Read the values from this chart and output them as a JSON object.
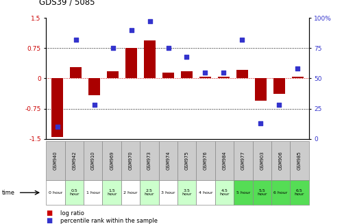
{
  "title": "GDS39 / 5085",
  "gsm_labels": [
    "GSM940",
    "GSM942",
    "GSM910",
    "GSM969",
    "GSM970",
    "GSM973",
    "GSM974",
    "GSM975",
    "GSM976",
    "GSM984",
    "GSM977",
    "GSM903",
    "GSM906",
    "GSM985"
  ],
  "time_labels": [
    "0 hour",
    "0.5\nhour",
    "1 hour",
    "1.5\nhour",
    "2 hour",
    "2.5\nhour",
    "3 hour",
    "3.5\nhour",
    "4 hour",
    "4.5\nhour",
    "5 hour",
    "5.5\nhour",
    "6 hour",
    "6.5\nhour"
  ],
  "log_ratio": [
    -1.45,
    0.28,
    -0.42,
    0.18,
    0.75,
    0.95,
    0.15,
    0.18,
    0.05,
    0.05,
    0.22,
    -0.55,
    -0.38,
    0.05
  ],
  "percentile": [
    10,
    82,
    28,
    75,
    90,
    97,
    75,
    68,
    55,
    55,
    82,
    13,
    28,
    58
  ],
  "ylim": [
    -1.5,
    1.5
  ],
  "y2lim": [
    0,
    100
  ],
  "yticks_left": [
    -1.5,
    -0.75,
    0,
    0.75,
    1.5
  ],
  "yticks_right": [
    0,
    25,
    50,
    75,
    100
  ],
  "hlines": [
    0.75,
    -0.75
  ],
  "zero_line": 0,
  "bar_color": "#aa0000",
  "dot_color": "#3333cc",
  "time_bg_colors": [
    "#ffffff",
    "#ccffcc",
    "#ffffff",
    "#ccffcc",
    "#ffffff",
    "#ccffcc",
    "#ffffff",
    "#ccffcc",
    "#ffffff",
    "#ccffcc",
    "#55dd55",
    "#55dd55",
    "#55dd55",
    "#55dd55"
  ],
  "gsm_bg_color": "#cccccc",
  "legend_bar_color": "#cc0000",
  "legend_dot_color": "#3333cc"
}
